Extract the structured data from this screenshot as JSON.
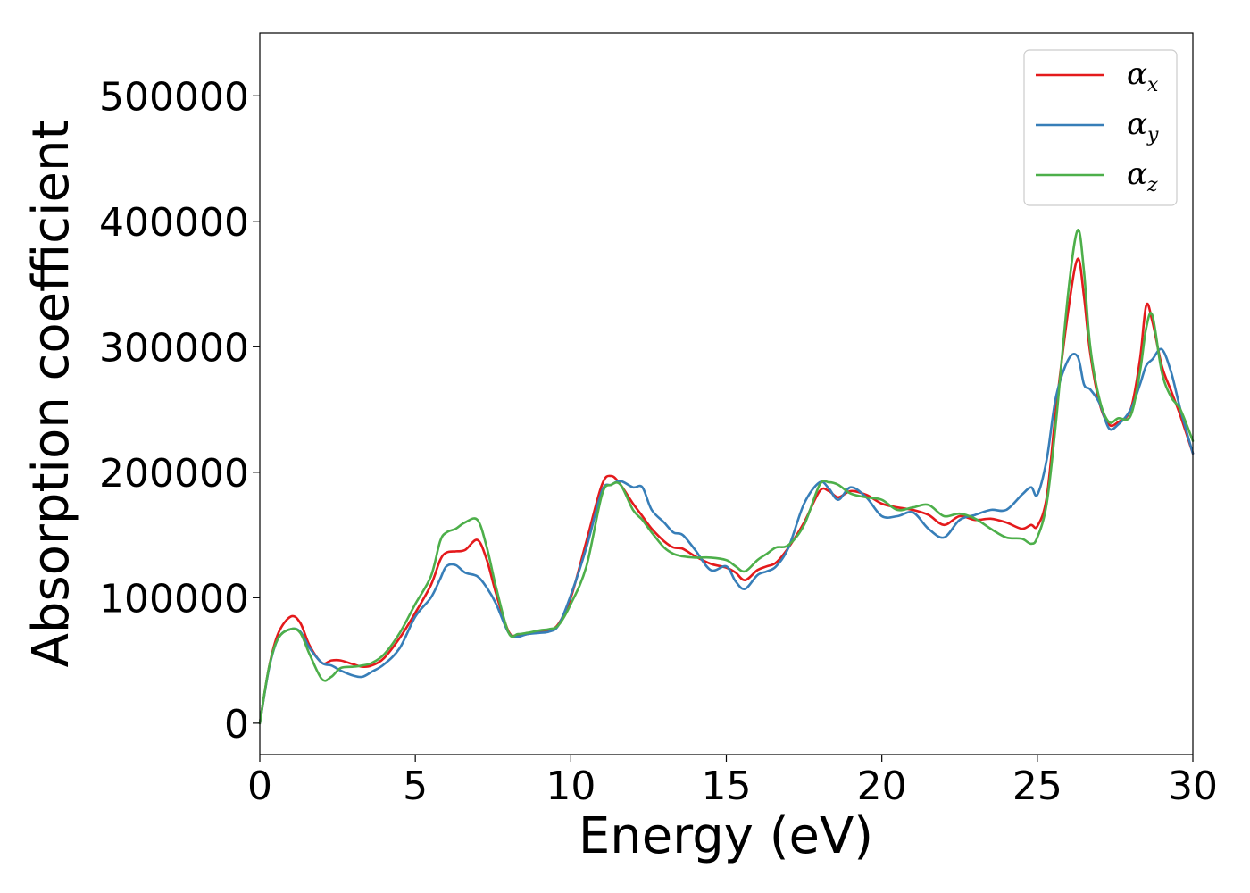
{
  "chart_data": {
    "type": "line",
    "xlabel": "Energy (eV)",
    "ylabel": "Absorption coefficient",
    "xlim": [
      0,
      30
    ],
    "ylim": [
      -25000,
      550000
    ],
    "xticks": [
      "0",
      "5",
      "10",
      "15",
      "20",
      "25",
      "30"
    ],
    "xtick_values": [
      0,
      5,
      10,
      15,
      20,
      25,
      30
    ],
    "yticks": [
      "0",
      "100000",
      "200000",
      "300000",
      "400000",
      "500000"
    ],
    "ytick_values": [
      0,
      100000,
      200000,
      300000,
      400000,
      500000
    ],
    "grid": false,
    "legend_position": "top-right",
    "x": [
      0,
      0.3,
      0.6,
      1.0,
      1.3,
      1.6,
      2.0,
      2.3,
      2.6,
      3.0,
      3.3,
      3.6,
      4.0,
      4.5,
      5.0,
      5.5,
      5.8,
      6.0,
      6.3,
      6.6,
      7.0,
      7.3,
      7.6,
      8.0,
      8.3,
      8.6,
      9.0,
      9.3,
      9.6,
      10.0,
      10.5,
      11.0,
      11.3,
      11.6,
      12.0,
      12.3,
      12.6,
      13.0,
      13.3,
      13.6,
      14.0,
      14.5,
      15.0,
      15.3,
      15.6,
      16.0,
      16.3,
      16.6,
      17.0,
      17.5,
      18.0,
      18.3,
      18.6,
      19.0,
      19.5,
      20.0,
      20.5,
      21.0,
      21.5,
      22.0,
      22.5,
      23.0,
      23.5,
      24.0,
      24.5,
      24.8,
      25.0,
      25.3,
      25.6,
      26.0,
      26.3,
      26.5,
      26.7,
      27.0,
      27.3,
      27.6,
      28.0,
      28.3,
      28.5,
      28.7,
      29.0,
      29.3,
      29.6,
      30.0
    ],
    "series": [
      {
        "name": "αx",
        "legend_main": "α",
        "legend_sub": "x",
        "color": "#e41a1c",
        "values": [
          0,
          45000,
          72000,
          85000,
          80000,
          62000,
          48000,
          50000,
          50000,
          47000,
          45000,
          46000,
          52000,
          68000,
          88000,
          110000,
          130000,
          136000,
          137000,
          138000,
          146000,
          130000,
          103000,
          73000,
          70000,
          71000,
          73000,
          74000,
          79000,
          100000,
          145000,
          190000,
          197000,
          190000,
          175000,
          165000,
          155000,
          145000,
          140000,
          139000,
          133000,
          127000,
          124000,
          120000,
          114000,
          122000,
          125000,
          128000,
          140000,
          160000,
          185000,
          185000,
          180000,
          185000,
          182000,
          175000,
          172000,
          170000,
          166000,
          158000,
          165000,
          162000,
          163000,
          160000,
          155000,
          158000,
          157000,
          180000,
          250000,
          330000,
          370000,
          340000,
          295000,
          255000,
          238000,
          240000,
          250000,
          290000,
          333000,
          320000,
          285000,
          265000,
          245000,
          215000
        ]
      },
      {
        "name": "αy",
        "legend_main": "α",
        "legend_sub": "y",
        "color": "#377eb8",
        "values": [
          0,
          44000,
          68000,
          75000,
          73000,
          60000,
          48000,
          46000,
          42000,
          38000,
          37000,
          41000,
          47000,
          60000,
          85000,
          100000,
          115000,
          125000,
          126000,
          120000,
          117000,
          108000,
          95000,
          72000,
          69000,
          71000,
          72000,
          73000,
          78000,
          102000,
          140000,
          185000,
          190000,
          193000,
          188000,
          188000,
          170000,
          160000,
          152000,
          150000,
          138000,
          122000,
          125000,
          113000,
          107000,
          118000,
          121000,
          125000,
          140000,
          175000,
          192000,
          187000,
          178000,
          188000,
          180000,
          165000,
          165000,
          168000,
          155000,
          148000,
          162000,
          166000,
          170000,
          170000,
          182000,
          188000,
          182000,
          210000,
          260000,
          290000,
          292000,
          270000,
          266000,
          255000,
          235000,
          238000,
          250000,
          270000,
          285000,
          290000,
          298000,
          280000,
          250000,
          215000
        ]
      },
      {
        "name": "αz",
        "legend_main": "α",
        "legend_sub": "z",
        "color": "#4daf4a",
        "values": [
          0,
          45000,
          68000,
          75000,
          72000,
          55000,
          35000,
          37000,
          44000,
          45000,
          46000,
          48000,
          55000,
          72000,
          95000,
          117000,
          145000,
          152000,
          155000,
          160000,
          162000,
          140000,
          108000,
          72000,
          71000,
          72000,
          74000,
          75000,
          78000,
          95000,
          125000,
          182000,
          190000,
          190000,
          170000,
          162000,
          152000,
          140000,
          135000,
          133000,
          132000,
          132000,
          130000,
          125000,
          121000,
          130000,
          135000,
          140000,
          142000,
          158000,
          190000,
          192000,
          190000,
          183000,
          180000,
          178000,
          170000,
          172000,
          174000,
          165000,
          167000,
          163000,
          155000,
          148000,
          147000,
          143000,
          148000,
          175000,
          240000,
          345000,
          393000,
          360000,
          300000,
          258000,
          240000,
          243000,
          245000,
          280000,
          315000,
          325000,
          280000,
          260000,
          250000,
          225000
        ]
      }
    ]
  }
}
